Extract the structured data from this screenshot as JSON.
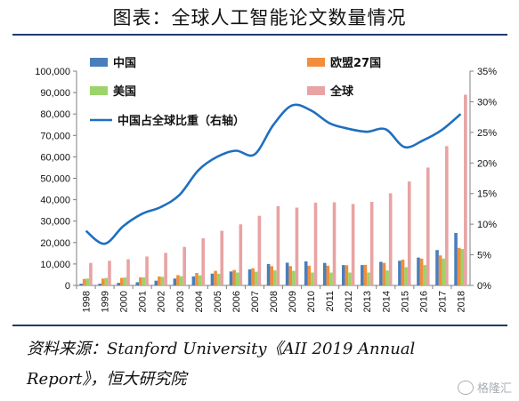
{
  "title": "图表：全球人工智能论文数量情况",
  "source_line1": "资料来源：Stanford University《AII 2019 Annual",
  "source_line2": "Report》，恒大研究院",
  "watermark": "格隆汇",
  "colors": {
    "china": "#4a7ebb",
    "eu27": "#f28e3b",
    "us": "#9bd46a",
    "global": "#e8a3a3",
    "share_line": "#1f6fc0",
    "rule": "#1f3b6e"
  },
  "chart_data": {
    "type": "bar",
    "title": "",
    "xlabel": "",
    "ylabel": "",
    "categories": [
      "1998",
      "1999",
      "2000",
      "2001",
      "2002",
      "2003",
      "2004",
      "2005",
      "2006",
      "2007",
      "2008",
      "2009",
      "2010",
      "2011",
      "2012",
      "2013",
      "2014",
      "2015",
      "2016",
      "2017",
      "2018"
    ],
    "ylim": [
      0,
      100000
    ],
    "y_ticks": [
      "0",
      "10,000",
      "20,000",
      "30,000",
      "40,000",
      "50,000",
      "60,000",
      "70,000",
      "80,000",
      "90,000",
      "100,000"
    ],
    "y2lim": [
      0,
      35
    ],
    "y2_ticks": [
      "0%",
      "5%",
      "10%",
      "15%",
      "20%",
      "25%",
      "30%",
      "35%"
    ],
    "legend_position": "top",
    "series": [
      {
        "name": "中国",
        "values": [
          800,
          800,
          1200,
          1500,
          2200,
          3200,
          4200,
          5500,
          6500,
          7500,
          10000,
          10600,
          11200,
          10500,
          9500,
          9500,
          11000,
          11500,
          13000,
          16500,
          24500
        ]
      },
      {
        "name": "欧盟27国",
        "values": [
          3000,
          3200,
          3500,
          3800,
          4200,
          4800,
          5800,
          6800,
          7200,
          8000,
          9000,
          9000,
          9200,
          9200,
          9400,
          9600,
          10500,
          12000,
          12500,
          14000,
          17500
        ]
      },
      {
        "name": "美国",
        "values": [
          3200,
          3500,
          3700,
          3800,
          4000,
          4300,
          4700,
          5400,
          6000,
          6400,
          7000,
          6800,
          6000,
          6000,
          6000,
          6000,
          7000,
          8500,
          9500,
          12500,
          17000
        ]
      },
      {
        "name": "全球",
        "values": [
          10500,
          11500,
          12200,
          13500,
          15200,
          18000,
          22000,
          25500,
          28500,
          32500,
          37000,
          36300,
          38600,
          38800,
          38000,
          39000,
          43000,
          48500,
          55000,
          65000,
          89000
        ]
      },
      {
        "name": "中国占全球比重（右轴）",
        "axis": "right",
        "values": [
          8.9,
          6.8,
          9.7,
          11.7,
          12.8,
          14.8,
          18.8,
          21.0,
          22.0,
          21.4,
          26.2,
          29.4,
          28.6,
          26.5,
          25.6,
          25.1,
          25.5,
          22.6,
          23.7,
          25.4,
          28.0
        ]
      }
    ]
  }
}
